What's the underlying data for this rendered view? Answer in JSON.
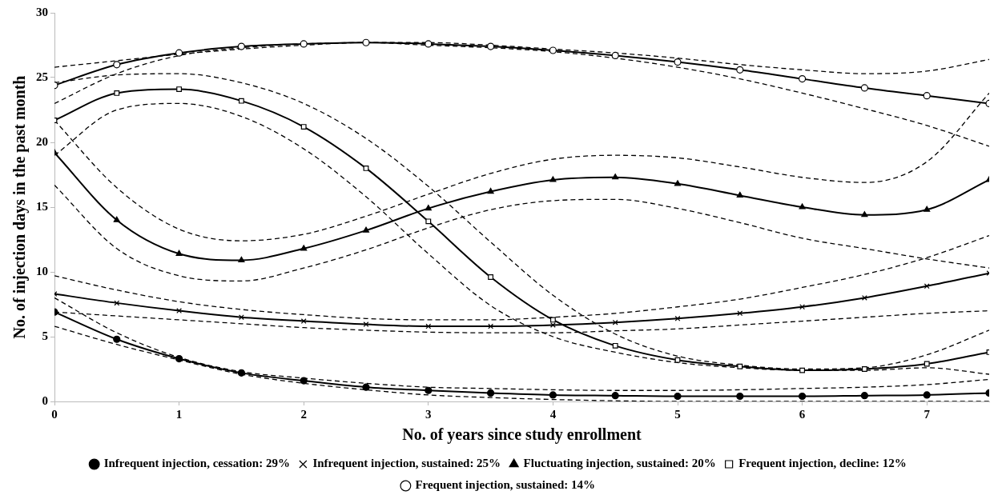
{
  "chart_data": {
    "type": "line",
    "xlabel": "No. of years since study enrollment",
    "ylabel": "No. of injection days in the past month",
    "x": [
      0,
      0.5,
      1,
      1.5,
      2,
      2.5,
      3,
      3.5,
      4,
      4.5,
      5,
      5.5,
      6,
      6.5,
      7,
      7.5
    ],
    "xlim": [
      0,
      7.5
    ],
    "xticks": [
      0,
      1,
      2,
      3,
      4,
      5,
      6,
      7
    ],
    "ylim": [
      0,
      30
    ],
    "yticks": [
      0,
      5,
      10,
      15,
      20,
      25,
      30
    ],
    "grid": false,
    "legend": "bottom",
    "line_style": "solid",
    "series": [
      {
        "name": "Infrequent injection, cessation: 29%",
        "color": "#000000",
        "marker": "circle",
        "values": [
          6.9,
          4.8,
          3.3,
          2.2,
          1.6,
          1.1,
          0.85,
          0.65,
          0.5,
          0.45,
          0.4,
          0.4,
          0.4,
          0.45,
          0.5,
          0.65
        ]
      },
      {
        "color": "#000000",
        "marker": "none",
        "line_style": "dashed",
        "values": [
          5.8,
          4.4,
          3.2,
          2.1,
          1.4,
          0.9,
          0.5,
          0.3,
          0.15,
          0.05,
          0,
          0,
          0,
          0,
          0,
          0
        ]
      },
      {
        "color": "#000000",
        "marker": "none",
        "line_style": "dashed",
        "values": [
          8.0,
          5.3,
          3.4,
          2.3,
          1.8,
          1.4,
          1.1,
          1.0,
          0.9,
          0.85,
          0.85,
          0.9,
          1.0,
          1.1,
          1.3,
          1.7
        ]
      },
      {
        "name": "Infrequent injection, sustained: 25%",
        "color": "#000000",
        "marker": "cross",
        "values": [
          8.3,
          7.6,
          7.0,
          6.5,
          6.2,
          5.95,
          5.8,
          5.8,
          5.9,
          6.1,
          6.4,
          6.8,
          7.3,
          8.0,
          8.9,
          9.9
        ]
      },
      {
        "color": "#000000",
        "marker": "none",
        "line_style": "dashed",
        "values": [
          6.9,
          6.6,
          6.3,
          6.0,
          5.7,
          5.5,
          5.35,
          5.3,
          5.3,
          5.45,
          5.6,
          5.9,
          6.2,
          6.5,
          6.8,
          7.0
        ]
      },
      {
        "color": "#000000",
        "marker": "none",
        "line_style": "dashed",
        "values": [
          9.7,
          8.6,
          7.7,
          7.1,
          6.7,
          6.4,
          6.3,
          6.3,
          6.5,
          6.8,
          7.3,
          7.9,
          8.8,
          9.8,
          11.1,
          12.8
        ]
      },
      {
        "name": "Fluctuating injection, sustained: 20%",
        "color": "#000000",
        "marker": "triangle",
        "values": [
          19.2,
          14.0,
          11.4,
          10.9,
          11.8,
          13.2,
          14.9,
          16.2,
          17.1,
          17.3,
          16.8,
          15.9,
          15.0,
          14.4,
          14.8,
          17.1
        ]
      },
      {
        "color": "#000000",
        "marker": "none",
        "line_style": "dashed",
        "values": [
          16.7,
          11.8,
          9.7,
          9.3,
          10.3,
          11.7,
          13.4,
          14.8,
          15.5,
          15.6,
          14.9,
          13.8,
          12.6,
          11.8,
          11.0,
          10.3
        ]
      },
      {
        "color": "#000000",
        "marker": "none",
        "line_style": "dashed",
        "values": [
          21.7,
          16.5,
          13.3,
          12.4,
          12.9,
          14.3,
          16.0,
          17.6,
          18.7,
          19.0,
          18.8,
          18.1,
          17.3,
          16.9,
          18.5,
          23.8
        ]
      },
      {
        "name": "Frequent injection, decline: 12%",
        "color": "#000000",
        "marker": "square",
        "values": [
          21.7,
          23.8,
          24.1,
          23.2,
          21.2,
          18.0,
          13.9,
          9.6,
          6.3,
          4.3,
          3.2,
          2.7,
          2.4,
          2.5,
          2.9,
          3.8
        ]
      },
      {
        "color": "#000000",
        "marker": "none",
        "line_style": "dashed",
        "values": [
          19.0,
          22.5,
          23.0,
          22.0,
          19.5,
          15.8,
          11.4,
          7.4,
          5.0,
          3.8,
          3.0,
          2.6,
          2.4,
          2.4,
          2.6,
          2.1
        ]
      },
      {
        "color": "#000000",
        "marker": "none",
        "line_style": "dashed",
        "values": [
          24.6,
          25.2,
          25.3,
          24.6,
          23.0,
          20.3,
          16.6,
          12.3,
          8.2,
          5.2,
          3.5,
          2.8,
          2.5,
          2.6,
          3.6,
          5.5
        ]
      },
      {
        "name": "Frequent injection, sustained: 14%",
        "color": "#000000",
        "marker": "circle",
        "values": [
          24.4,
          26.0,
          26.9,
          27.4,
          27.6,
          27.7,
          27.6,
          27.4,
          27.1,
          26.7,
          26.2,
          25.6,
          24.9,
          24.2,
          23.6,
          23.0
        ]
      },
      {
        "color": "#000000",
        "marker": "none",
        "line_style": "dashed",
        "values": [
          23.0,
          25.3,
          26.7,
          27.3,
          27.6,
          27.7,
          27.5,
          27.3,
          27.0,
          26.5,
          25.8,
          24.9,
          23.8,
          22.6,
          21.3,
          19.7
        ]
      },
      {
        "color": "#000000",
        "marker": "none",
        "line_style": "dashed",
        "values": [
          25.8,
          26.3,
          26.8,
          27.2,
          27.5,
          27.7,
          27.7,
          27.5,
          27.2,
          26.9,
          26.5,
          26.0,
          25.6,
          25.3,
          25.5,
          26.4
        ]
      }
    ]
  }
}
